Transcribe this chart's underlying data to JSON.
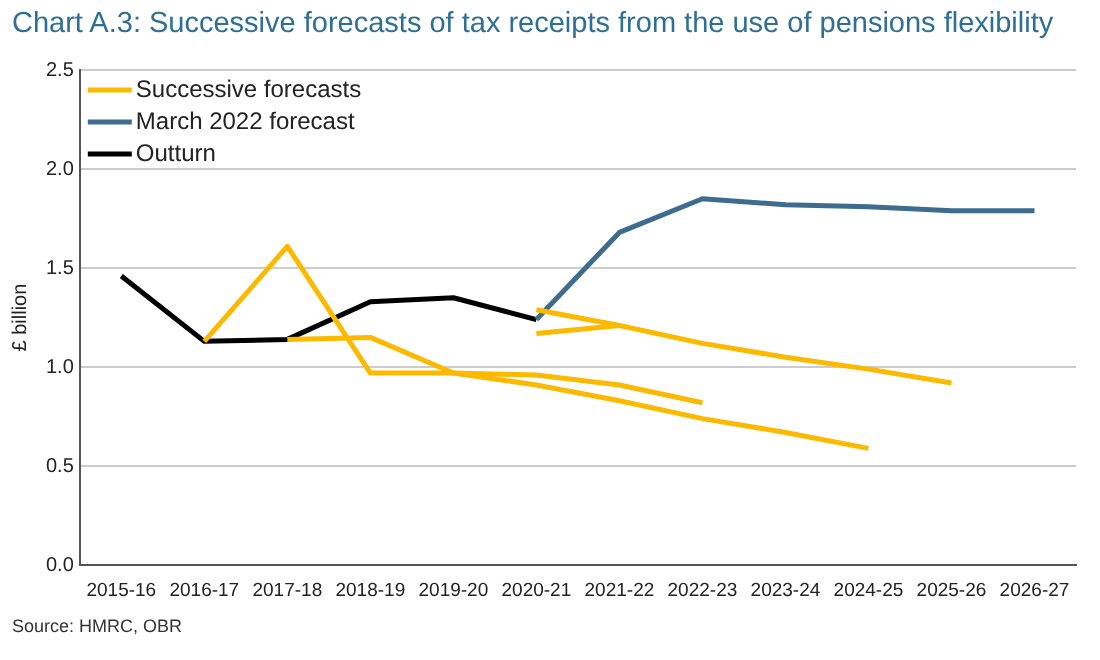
{
  "chart_data": {
    "type": "line",
    "title": "Chart A.3: Successive forecasts of tax receipts from the use of pensions flexibility",
    "ylabel": "£ billion",
    "categories": [
      "2015-16",
      "2016-17",
      "2017-18",
      "2018-19",
      "2019-20",
      "2020-21",
      "2021-22",
      "2022-23",
      "2023-24",
      "2024-25",
      "2025-26",
      "2026-27"
    ],
    "series": [
      {
        "name": "Successive forecasts",
        "color": "#fbb900",
        "values": [
          null,
          1.13,
          1.61,
          0.97,
          0.97,
          0.96,
          0.91,
          0.82,
          null,
          null,
          null,
          null
        ]
      },
      {
        "color": "#fbb900",
        "values": [
          null,
          null,
          1.14,
          1.15,
          0.97,
          0.91,
          0.83,
          0.74,
          0.67,
          0.59,
          null,
          null
        ]
      },
      {
        "color": "#fbb900",
        "values": [
          null,
          null,
          null,
          null,
          null,
          1.17,
          1.21,
          null,
          null,
          null,
          null,
          null
        ]
      },
      {
        "color": "#fbb900",
        "values": [
          null,
          null,
          null,
          null,
          null,
          1.29,
          1.21,
          1.12,
          1.05,
          0.99,
          0.92,
          null
        ]
      },
      {
        "name": "March 2022 forecast",
        "color": "#3d6c8e",
        "values": [
          null,
          null,
          null,
          null,
          null,
          1.24,
          1.68,
          1.85,
          1.82,
          1.81,
          1.79,
          1.79
        ]
      },
      {
        "name": "Outturn",
        "color": "#000000",
        "values": [
          1.46,
          1.13,
          1.14,
          1.33,
          1.35,
          1.24,
          null,
          null,
          null,
          null,
          null,
          null
        ]
      }
    ],
    "ylim": [
      0,
      2.5
    ],
    "yticks": [
      {
        "value": 0,
        "label": "0.0"
      },
      {
        "value": 0.5,
        "label": "0.5"
      },
      {
        "value": 1,
        "label": "1.0"
      },
      {
        "value": 1.5,
        "label": "1.5"
      },
      {
        "value": 2,
        "label": "2.0"
      },
      {
        "value": 2.5,
        "label": "2.5"
      }
    ],
    "grid": "y",
    "legend": "top left",
    "marker": "none",
    "line_style": "solid",
    "annotations": [
      "Source: HMRC, OBR"
    ]
  }
}
